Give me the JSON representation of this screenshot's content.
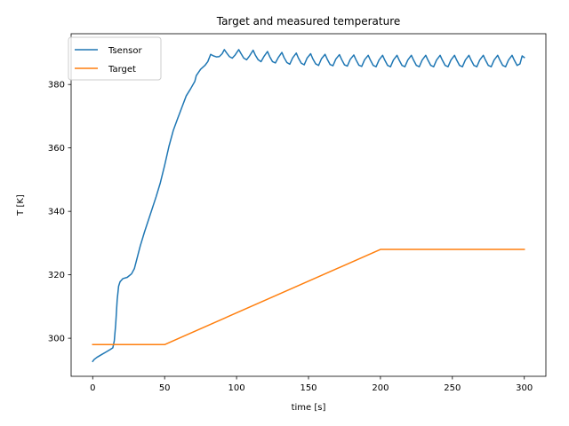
{
  "chart_data": {
    "type": "line",
    "title": "Target and measured temperature",
    "xlabel": "time [s]",
    "ylabel": "T [K]",
    "xlim": [
      -15,
      315
    ],
    "ylim": [
      288,
      396
    ],
    "xticks": [
      0,
      50,
      100,
      150,
      200,
      250,
      300
    ],
    "yticks": [
      300,
      320,
      340,
      360,
      380
    ],
    "grid": false,
    "legend_position": "top-left",
    "series": [
      {
        "name": "Tsensor",
        "color": "#1f77b4",
        "x": [
          0,
          1,
          3,
          6,
          9,
          12,
          14,
          15,
          16,
          17,
          18,
          19,
          21,
          24,
          27,
          29,
          31,
          33,
          36,
          40,
          44,
          47,
          50,
          53,
          56,
          59,
          62,
          65,
          68,
          71,
          72,
          75,
          78,
          80,
          82,
          84,
          86,
          88,
          90,
          91.5,
          93,
          95,
          97,
          99,
          101.5,
          103,
          105,
          107,
          109,
          111.5,
          113,
          115,
          117,
          119,
          121.5,
          123,
          125,
          127,
          129,
          131.5,
          133,
          135,
          137,
          139,
          141.5,
          143,
          145,
          147,
          149,
          151.5,
          153,
          155,
          157,
          159,
          161.5,
          163,
          165,
          167,
          169,
          171.5,
          173,
          175,
          177,
          179,
          181.5,
          183,
          185,
          187,
          189,
          191.5,
          193,
          195,
          197,
          199,
          201.5,
          203,
          205,
          207,
          209,
          211.5,
          213,
          215,
          217,
          219,
          221.5,
          223,
          225,
          227,
          229,
          231.5,
          233,
          235,
          237,
          239,
          241.5,
          243,
          245,
          247,
          249,
          251.5,
          253,
          255,
          257,
          259,
          261.5,
          263,
          265,
          267,
          269,
          271.5,
          273,
          275,
          277,
          279,
          281.5,
          283,
          285,
          287,
          289,
          291.5,
          293,
          295,
          297,
          298.5,
          300
        ],
        "values": [
          292.7,
          293.3,
          294,
          294.8,
          295.6,
          296.4,
          297,
          299.2,
          304.5,
          312,
          316.4,
          317.8,
          318.8,
          319.2,
          320.3,
          322,
          325.5,
          329,
          333.5,
          339,
          344.5,
          349,
          354.5,
          360.5,
          365.5,
          369.2,
          372.8,
          376.4,
          378.6,
          381,
          382.8,
          384.8,
          386,
          387.2,
          389.5,
          389,
          388.7,
          388.8,
          389.7,
          391,
          390,
          388.8,
          388.3,
          389.3,
          391,
          389.8,
          388.3,
          387.8,
          389,
          390.8,
          389.3,
          387.8,
          387.2,
          388.8,
          390.4,
          388.8,
          387.2,
          386.8,
          388.5,
          390.1,
          388.5,
          386.9,
          386.4,
          388.4,
          389.9,
          388.3,
          386.7,
          386.2,
          388.3,
          389.7,
          388.1,
          386.5,
          386,
          388.1,
          389.5,
          388,
          386.3,
          385.9,
          388,
          389.4,
          387.9,
          386.2,
          385.8,
          387.9,
          389.3,
          387.8,
          386.1,
          385.7,
          387.8,
          389.2,
          387.7,
          386,
          385.6,
          387.7,
          389.2,
          387.7,
          386,
          385.6,
          387.7,
          389.2,
          387.7,
          386,
          385.6,
          387.7,
          389.2,
          387.7,
          386,
          385.6,
          387.7,
          389.2,
          387.7,
          386,
          385.6,
          387.7,
          389.2,
          387.7,
          386,
          385.6,
          387.7,
          389.2,
          387.7,
          386,
          385.6,
          387.7,
          389.2,
          387.7,
          386,
          385.6,
          387.7,
          389.2,
          387.7,
          386,
          385.6,
          387.7,
          389.2,
          387.7,
          386,
          385.6,
          387.7,
          389.2,
          387.7,
          386,
          386.5,
          389,
          388.5
        ]
      },
      {
        "name": "Target",
        "color": "#ff7f0e",
        "x": [
          0,
          50,
          200,
          300
        ],
        "values": [
          298,
          298,
          328,
          328
        ]
      }
    ]
  }
}
